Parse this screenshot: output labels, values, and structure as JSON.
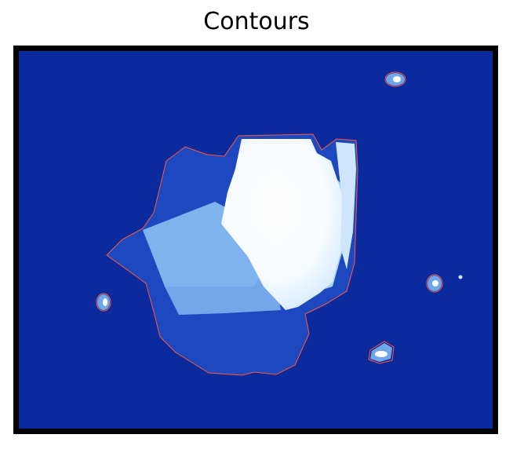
{
  "title": "Contours",
  "colors": {
    "background": "#0b2a9e",
    "contour": "#ff5a3c",
    "flake_dark": "#1d48bf",
    "flake_mid": "#6fa6ea",
    "flake_light": "#a9d0f6",
    "flake_bright": "#ffffff",
    "frame": "#000000"
  }
}
